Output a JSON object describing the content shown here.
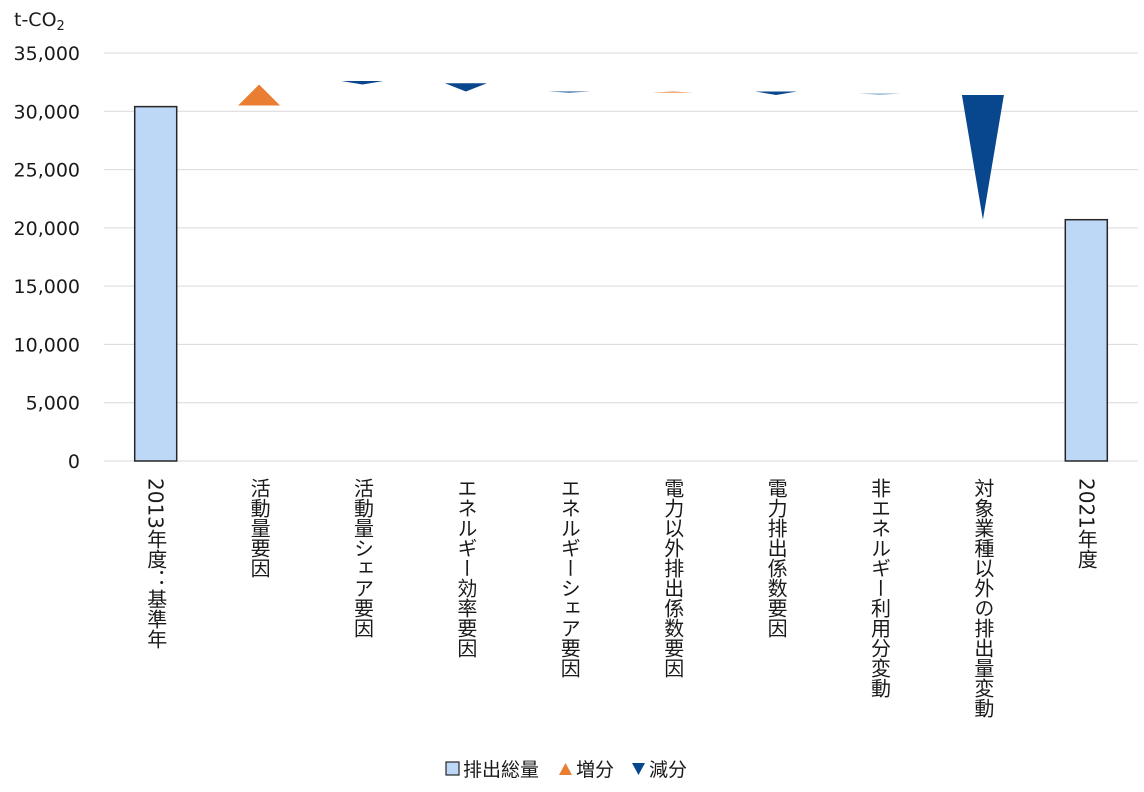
{
  "chart_data": {
    "type": "waterfall",
    "y_unit_label": "t-CO",
    "y_unit_subscript": "2",
    "ylim": [
      0,
      35000
    ],
    "yticks": [
      {
        "value": 0,
        "label": "0"
      },
      {
        "value": 5000,
        "label": "5,000"
      },
      {
        "value": 10000,
        "label": "10,000"
      },
      {
        "value": 15000,
        "label": "15,000"
      },
      {
        "value": 20000,
        "label": "20,000"
      },
      {
        "value": 25000,
        "label": "25,000"
      },
      {
        "value": 30000,
        "label": "30,000"
      },
      {
        "value": 35000,
        "label": "35,000"
      }
    ],
    "grid": true,
    "legend_position": "bottom",
    "legend": [
      {
        "key": "total",
        "marker": "square",
        "label": "排出総量"
      },
      {
        "key": "increase",
        "marker": "triangle-up",
        "label": "増分"
      },
      {
        "key": "decrease",
        "marker": "triangle-down",
        "label": "減分"
      }
    ],
    "colors": {
      "total_fill": "#bdd7f7",
      "total_stroke": "#262626",
      "increase": "#e97d32",
      "decrease": "#08478d"
    },
    "categories": [
      {
        "label": "2013年度：基準年",
        "kind": "total",
        "value": 30400
      },
      {
        "label": "活動量要因",
        "kind": "increase",
        "from": 30500,
        "to": 32300
      },
      {
        "label": "活動量シェア要因",
        "kind": "decrease",
        "from": 32600,
        "to": 32300
      },
      {
        "label": "エネルギー効率要因",
        "kind": "decrease",
        "from": 32400,
        "to": 31700
      },
      {
        "label": "エネルギーシェア要因",
        "kind": "decrease",
        "from": 31700,
        "to": 31600
      },
      {
        "label": "電力以外排出係数要因",
        "kind": "increase",
        "from": 31600,
        "to": 31700
      },
      {
        "label": "電力排出係数要因",
        "kind": "decrease",
        "from": 31700,
        "to": 31400
      },
      {
        "label": "非エネルギー利用分変動",
        "kind": "decrease",
        "from": 31500,
        "to": 31450
      },
      {
        "label": "対象業種以外の排出量変動",
        "kind": "decrease",
        "from": 31400,
        "to": 20700
      },
      {
        "label": "2021年度",
        "kind": "total",
        "value": 20700
      }
    ]
  }
}
